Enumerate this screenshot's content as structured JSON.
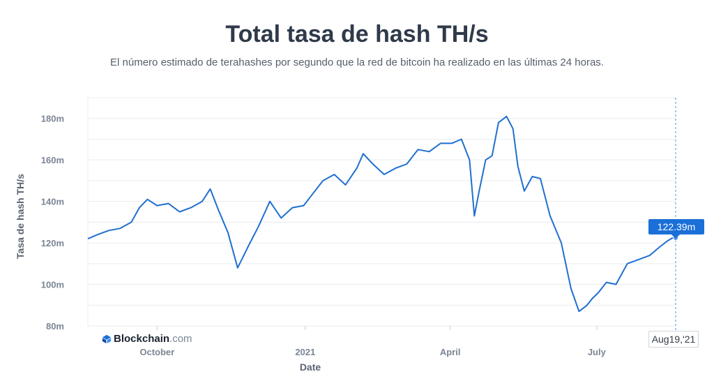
{
  "title": "Total tasa de hash TH/s",
  "subtitle": "El número estimado de terahashes por segundo que la red de bitcoin ha realizado en las últimas 24 horas.",
  "brand": {
    "name": "Blockchain",
    "domain": ".com",
    "icon": "blockchain-cube-icon"
  },
  "tooltip": {
    "value": "122.39m",
    "date": "Aug19,'21"
  },
  "colors": {
    "line": "#1f6fd0",
    "tooltip_bg": "#1a6fd8",
    "grid": "#e9ecef",
    "crosshair": "#4a90d9"
  },
  "chart_data": {
    "type": "line",
    "title": "Total tasa de hash TH/s",
    "xlabel": "Date",
    "ylabel": "Tasa de hash TH/s",
    "ylim": [
      80,
      190
    ],
    "yticks": [
      {
        "value": 80,
        "label": "80m"
      },
      {
        "value": 100,
        "label": "100m"
      },
      {
        "value": 120,
        "label": "120m"
      },
      {
        "value": 140,
        "label": "140m"
      },
      {
        "value": 160,
        "label": "160m"
      },
      {
        "value": 180,
        "label": "180m"
      }
    ],
    "xlim": [
      "2020-08-19",
      "2021-08-19"
    ],
    "xticks": [
      {
        "date": "2020-10-01",
        "label": "October"
      },
      {
        "date": "2021-01-01",
        "label": "2021"
      },
      {
        "date": "2021-04-01",
        "label": "April"
      },
      {
        "date": "2021-07-01",
        "label": "July"
      }
    ],
    "grid": true,
    "legend": "none",
    "series": [
      {
        "x": [
          "2020-08-19",
          "2020-08-25",
          "2020-09-01",
          "2020-09-08",
          "2020-09-15",
          "2020-09-20",
          "2020-09-25",
          "2020-10-01",
          "2020-10-08",
          "2020-10-15",
          "2020-10-22",
          "2020-10-29",
          "2020-11-03",
          "2020-11-08",
          "2020-11-14",
          "2020-11-20",
          "2020-11-27",
          "2020-12-03",
          "2020-12-10",
          "2020-12-17",
          "2020-12-24",
          "2020-12-31",
          "2021-01-05",
          "2021-01-12",
          "2021-01-19",
          "2021-01-26",
          "2021-02-02",
          "2021-02-06",
          "2021-02-12",
          "2021-02-19",
          "2021-02-26",
          "2021-03-05",
          "2021-03-12",
          "2021-03-19",
          "2021-03-26",
          "2021-04-02",
          "2021-04-08",
          "2021-04-13",
          "2021-04-16",
          "2021-04-19",
          "2021-04-23",
          "2021-04-27",
          "2021-05-01",
          "2021-05-06",
          "2021-05-10",
          "2021-05-13",
          "2021-05-17",
          "2021-05-22",
          "2021-05-27",
          "2021-06-02",
          "2021-06-09",
          "2021-06-15",
          "2021-06-20",
          "2021-06-25",
          "2021-06-28",
          "2021-07-02",
          "2021-07-07",
          "2021-07-13",
          "2021-07-20",
          "2021-07-27",
          "2021-08-03",
          "2021-08-09",
          "2021-08-14",
          "2021-08-17",
          "2021-08-19"
        ],
        "y": [
          122,
          124,
          126,
          127,
          130,
          137,
          141,
          138,
          139,
          135,
          137,
          140,
          146,
          136,
          125,
          108,
          119,
          128,
          140,
          132,
          137,
          138,
          143,
          150,
          153,
          148,
          156,
          163,
          158,
          153,
          156,
          158,
          165,
          164,
          168,
          168,
          170,
          160,
          133,
          145,
          160,
          162,
          178,
          181,
          175,
          157,
          145,
          152,
          151,
          133,
          120,
          98,
          87,
          90,
          93,
          96,
          101,
          100,
          110,
          112,
          114,
          118,
          121,
          122.39,
          122.39
        ]
      }
    ]
  }
}
